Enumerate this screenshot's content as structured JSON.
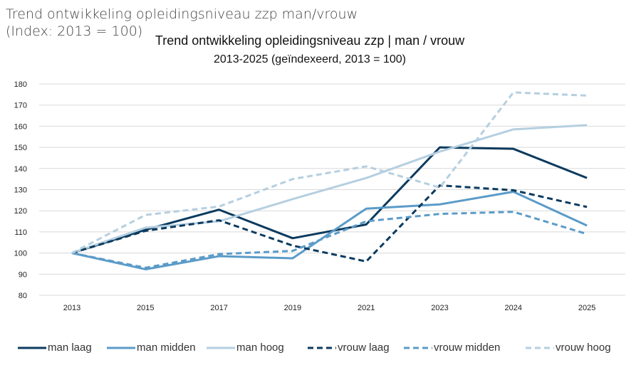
{
  "header": {
    "line1": "Trend ontwikkeling opleidingsniveau zzp man/vrouw",
    "line2": "(Index: 2013 = 100)"
  },
  "chart_data": {
    "type": "line",
    "title": "Trend ontwikkeling opleidingsniveau zzp | man / vrouw",
    "subtitle": "2013-2025 (geïndexeerd, 2013 = 100)",
    "categories": [
      "2013",
      "2015",
      "2017",
      "2019",
      "2021",
      "2023",
      "2024",
      "2025"
    ],
    "ylim": [
      80,
      180
    ],
    "yticks": [
      80,
      90,
      100,
      110,
      120,
      130,
      140,
      150,
      160,
      170,
      180
    ],
    "grid": true,
    "legend": "bottom",
    "series": [
      {
        "name": "man laag",
        "color": "#0b3a5e",
        "dash": false,
        "values": [
          100,
          111,
          120.5,
          107,
          113.5,
          150,
          149.3,
          135.5
        ]
      },
      {
        "name": "man midden",
        "color": "#5b9bc8",
        "dash": false,
        "values": [
          100,
          92.3,
          98.5,
          97.5,
          121,
          123,
          129,
          113
        ]
      },
      {
        "name": "man hoog",
        "color": "#b5cfe0",
        "dash": false,
        "values": [
          100,
          112,
          115,
          125.5,
          135.5,
          148,
          158.5,
          160.5
        ]
      },
      {
        "name": "vrouw laag",
        "color": "#0b3a5e",
        "dash": true,
        "values": [
          100,
          110.5,
          115.5,
          103.5,
          96,
          132,
          129.7,
          121.8
        ]
      },
      {
        "name": "vrouw midden",
        "color": "#5b9bc8",
        "dash": true,
        "values": [
          100,
          93,
          99.5,
          101,
          115,
          118.5,
          119.5,
          109
        ]
      },
      {
        "name": "vrouw hoog",
        "color": "#b5cfe0",
        "dash": true,
        "values": [
          100,
          118,
          122,
          135,
          141,
          131,
          176,
          174.5
        ]
      }
    ]
  }
}
